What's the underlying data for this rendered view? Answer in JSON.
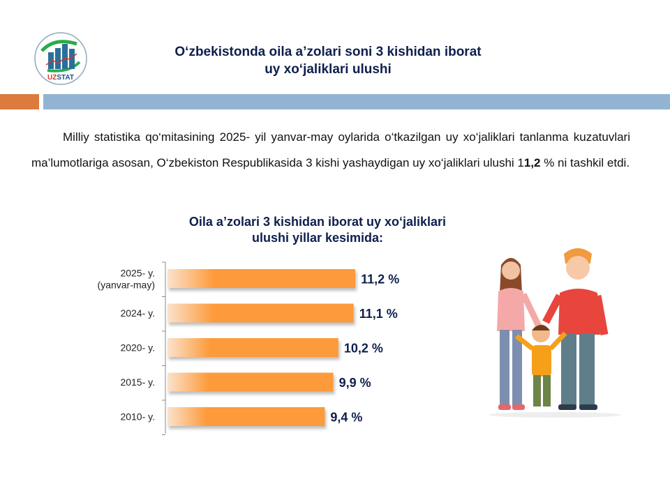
{
  "logo": {
    "text": "UZSTAT"
  },
  "header": {
    "title_line1": "O‘zbekistonda oila a’zolari soni 3 kishidan iborat",
    "title_line2": "uy xo‘jaliklari ulushi"
  },
  "paragraph": {
    "before": "Milliy statistika qo‘mitasining 2025- yil yanvar-may oylarida o‘tkazilgan uy xo‘jaliklari tanlanma kuzatuvlari ma’lumotlariga asosan, O‘zbekiston Respublikasida 3 kishi yashaydigan uy xo‘jaliklari ulushi 1",
    "bold": "1,2",
    "after": " % ni tashkil etdi."
  },
  "colors": {
    "bar": "#fd9a3a",
    "title": "#0e1f4d",
    "accent_orange": "#dd7a3d",
    "accent_blue": "#93b3d3"
  },
  "chart_data": {
    "type": "bar",
    "orientation": "horizontal",
    "title": "Oila a’zolari 3 kishidan iborat uy xo‘jaliklari ulushi yillar kesimida:",
    "title_line1": "Oila a’zolari 3 kishidan iborat uy xo‘jaliklari",
    "title_line2": "ulushi yillar  kesimida:",
    "categories": [
      [
        "2025- y.",
        "(yanvar-may)"
      ],
      [
        "2024- y."
      ],
      [
        "2020- y."
      ],
      [
        "2015- y."
      ],
      [
        "2010- y."
      ]
    ],
    "values": [
      11.2,
      11.1,
      10.2,
      9.9,
      9.4
    ],
    "labels": [
      "11,2 %",
      "11,1 %",
      "10,2 %",
      "9,9 %",
      "9,4 %"
    ],
    "unit": "%",
    "xlim": [
      0,
      12
    ]
  }
}
